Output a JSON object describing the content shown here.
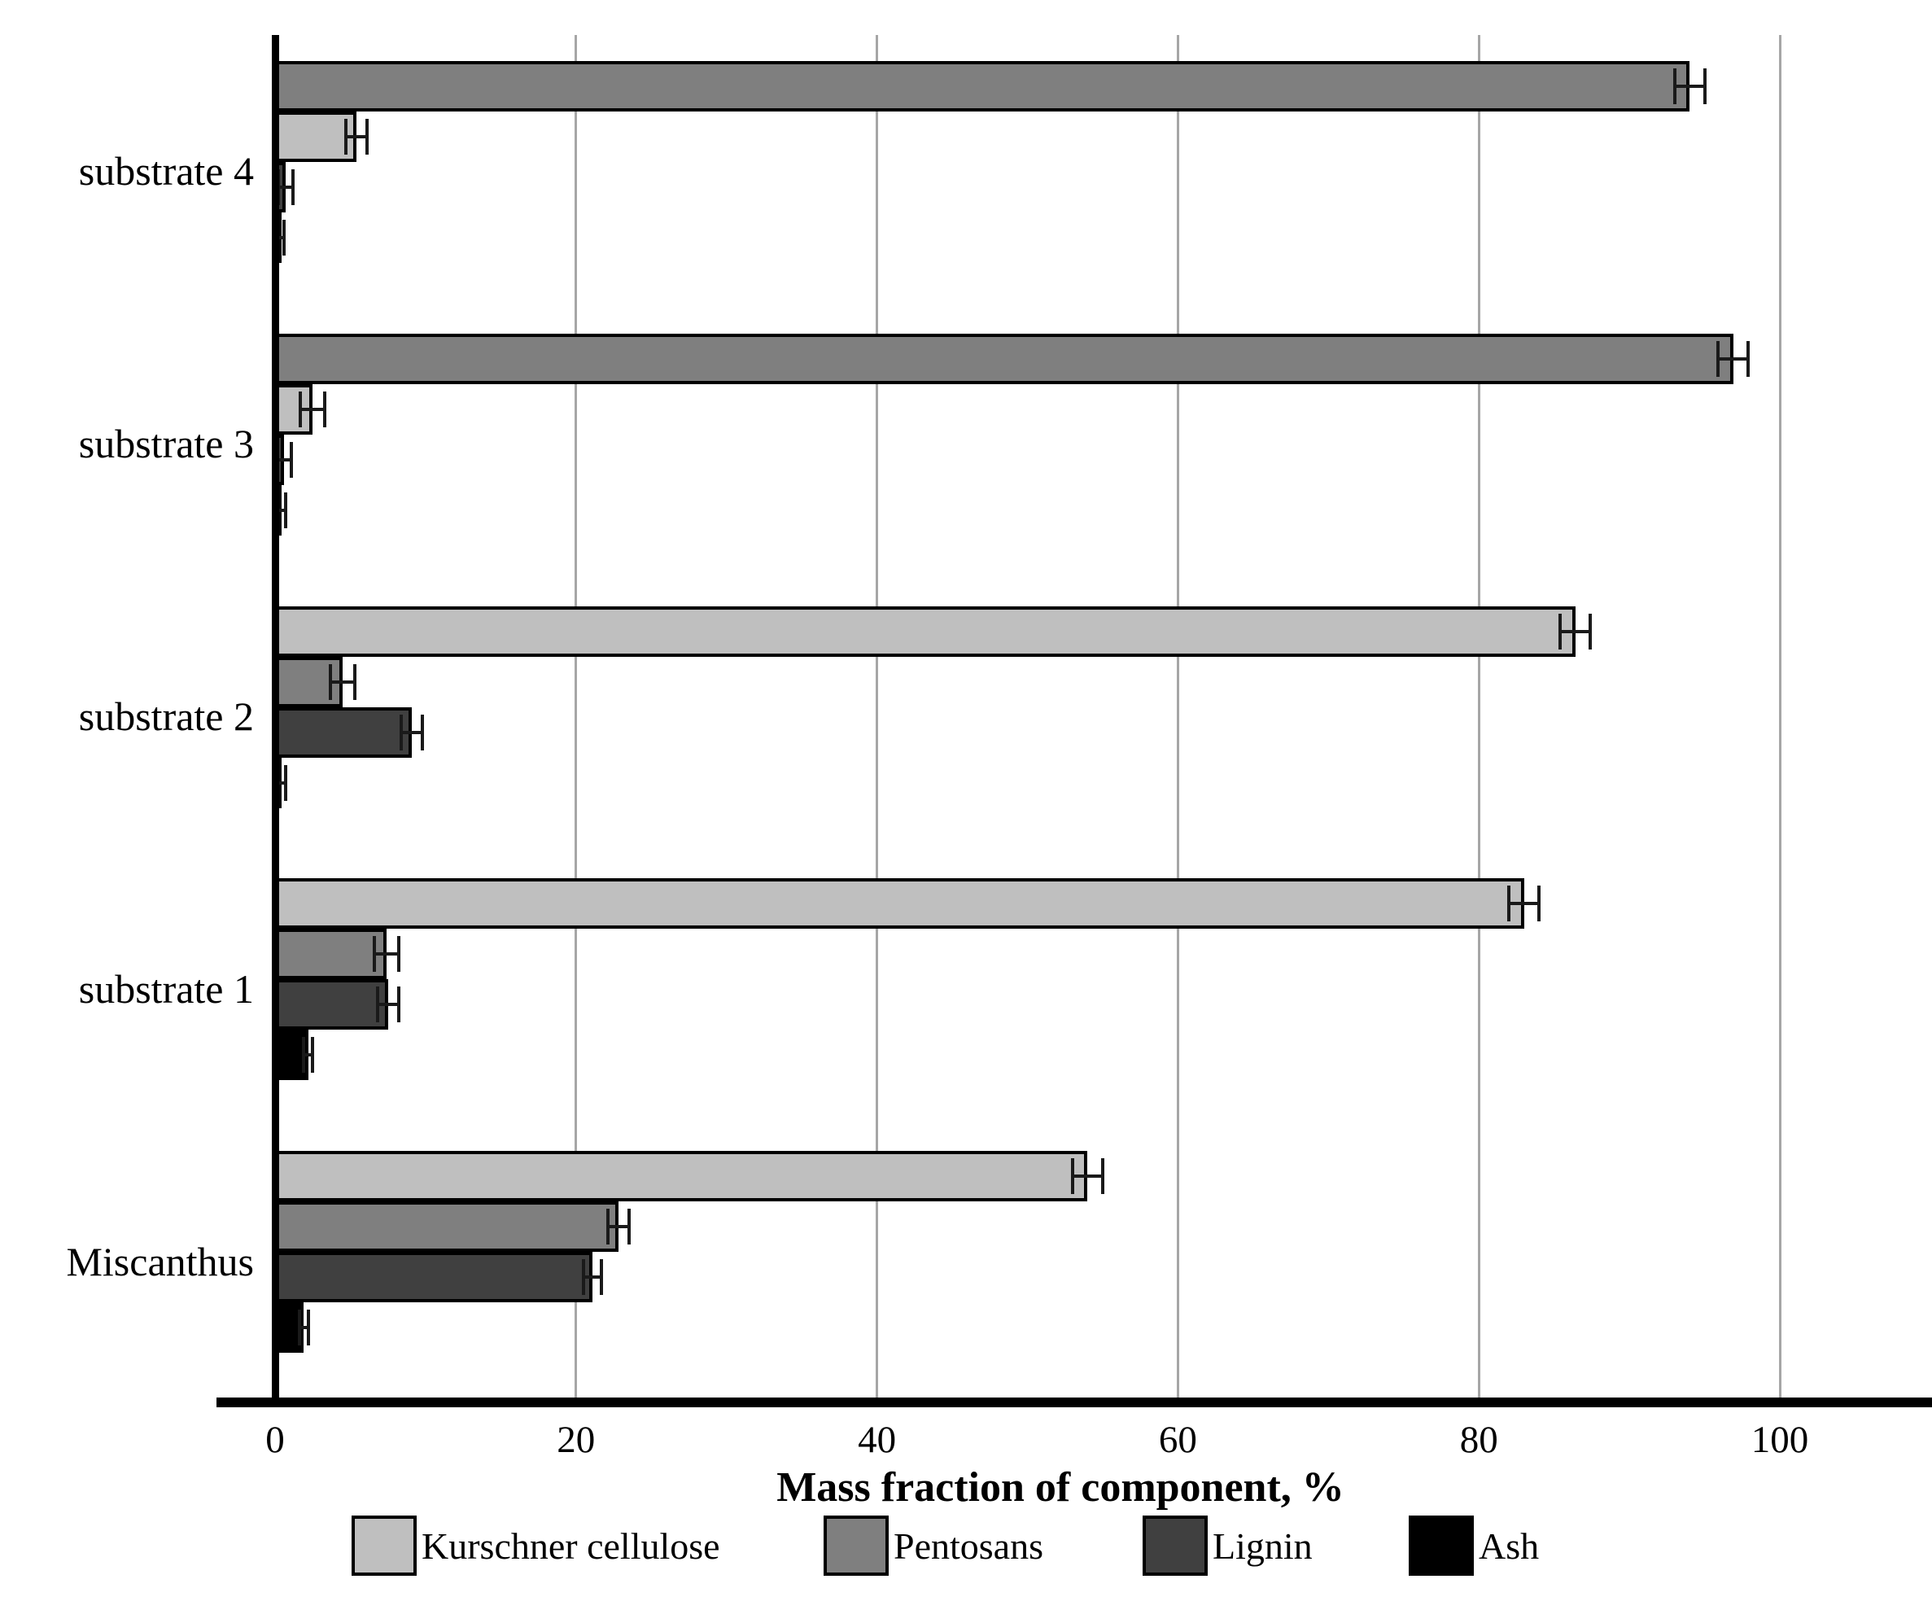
{
  "chart_data": {
    "type": "bar",
    "orientation": "horizontal",
    "xlabel": "Mass fraction of component, %",
    "xlim": [
      0,
      110
    ],
    "xticks": [
      0,
      20,
      40,
      60,
      80,
      100
    ],
    "grid": "vertical gridlines at each x tick, gray",
    "legend_position": "bottom",
    "categories": [
      "substrate 4",
      "substrate 3",
      "substrate 2",
      "substrate 1",
      "Miscanthus"
    ],
    "legend": [
      {
        "label": "Kurschner cellulose",
        "color": "#bfbfbf"
      },
      {
        "label": "Pentosans",
        "color": "#7f7f7f"
      },
      {
        "label": "Lignin",
        "color": "#404040"
      },
      {
        "label": "Ash",
        "color": "#000000"
      }
    ],
    "groups": [
      {
        "category": "substrate 4",
        "bars": [
          {
            "series": "Pentosans",
            "color": "#7f7f7f",
            "value": 94.0,
            "error": 1.0
          },
          {
            "series": "Kurschner cellulose",
            "color": "#bfbfbf",
            "value": 5.4,
            "error": 0.7
          },
          {
            "series": "Lignin",
            "color": "#404040",
            "value": 0.7,
            "error": 0.5
          },
          {
            "series": "Ash",
            "color": "#000000",
            "value": 0.3,
            "error": 0.3
          }
        ]
      },
      {
        "category": "substrate 3",
        "bars": [
          {
            "series": "Pentosans",
            "color": "#7f7f7f",
            "value": 96.9,
            "error": 1.0
          },
          {
            "series": "Kurschner cellulose",
            "color": "#bfbfbf",
            "value": 2.5,
            "error": 0.8
          },
          {
            "series": "Lignin",
            "color": "#404040",
            "value": 0.6,
            "error": 0.5
          },
          {
            "series": "Ash",
            "color": "#000000",
            "value": 0.4,
            "error": 0.3
          }
        ]
      },
      {
        "category": "substrate 2",
        "bars": [
          {
            "series": "Kurschner cellulose",
            "color": "#bfbfbf",
            "value": 86.4,
            "error": 1.0
          },
          {
            "series": "Pentosans",
            "color": "#7f7f7f",
            "value": 4.5,
            "error": 0.8
          },
          {
            "series": "Lignin",
            "color": "#404040",
            "value": 9.1,
            "error": 0.7
          },
          {
            "series": "Ash",
            "color": "#000000",
            "value": 0.4,
            "error": 0.3
          }
        ]
      },
      {
        "category": "substrate 1",
        "bars": [
          {
            "series": "Kurschner cellulose",
            "color": "#bfbfbf",
            "value": 83.0,
            "error": 1.0
          },
          {
            "series": "Pentosans",
            "color": "#7f7f7f",
            "value": 7.4,
            "error": 0.8
          },
          {
            "series": "Lignin",
            "color": "#404040",
            "value": 7.5,
            "error": 0.7
          },
          {
            "series": "Ash",
            "color": "#000000",
            "value": 2.2,
            "error": 0.3
          }
        ]
      },
      {
        "category": "Miscanthus",
        "bars": [
          {
            "series": "Kurschner cellulose",
            "color": "#bfbfbf",
            "value": 54.0,
            "error": 1.0
          },
          {
            "series": "Pentosans",
            "color": "#7f7f7f",
            "value": 22.8,
            "error": 0.7
          },
          {
            "series": "Lignin",
            "color": "#404040",
            "value": 21.1,
            "error": 0.6
          },
          {
            "series": "Ash",
            "color": "#000000",
            "value": 1.9,
            "error": 0.3
          }
        ]
      }
    ],
    "colors": {
      "gridline": "#a6a6a6",
      "axis": "#000000",
      "error_bar": "#1a1a1a",
      "background": "#ffffff"
    }
  }
}
